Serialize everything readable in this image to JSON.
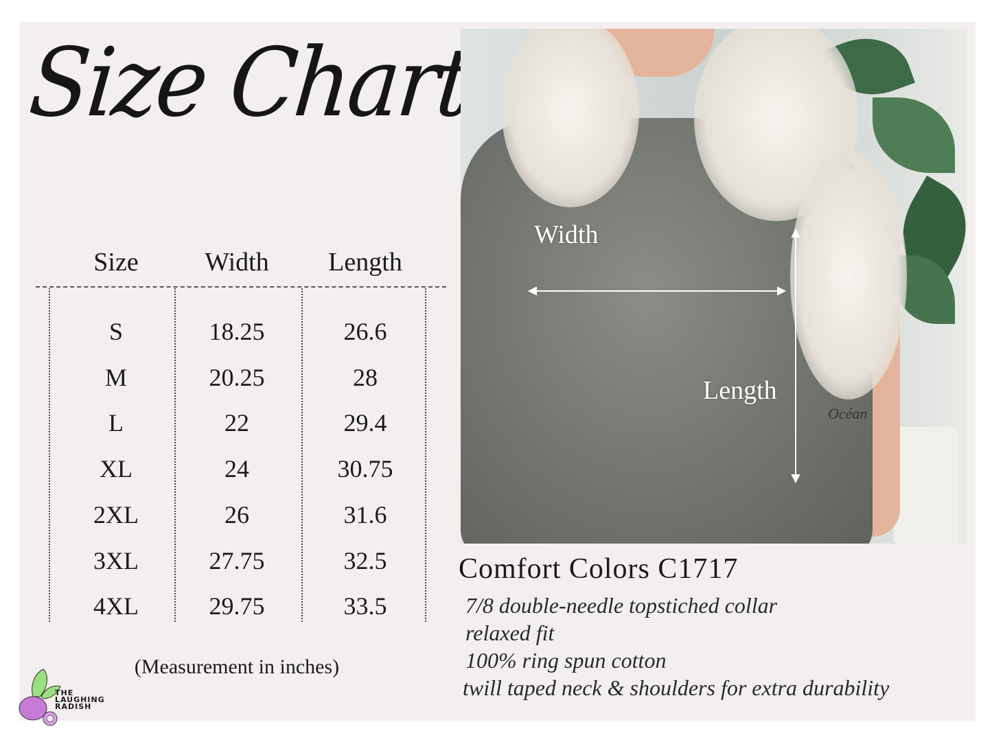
{
  "title": "Size Chart",
  "table": {
    "headers": [
      "Size",
      "Width",
      "Length"
    ],
    "rows": [
      [
        "S",
        "18.25",
        "26.6"
      ],
      [
        "M",
        "20.25",
        "28"
      ],
      [
        "L",
        "22",
        "29.4"
      ],
      [
        "XL",
        "24",
        "30.75"
      ],
      [
        "2XL",
        "26",
        "31.6"
      ],
      [
        "3XL",
        "27.75",
        "32.5"
      ],
      [
        "4XL",
        "29.75",
        "33.5"
      ]
    ],
    "note": "(Measurement in inches)"
  },
  "photo": {
    "width_label": "Width",
    "length_label": "Length",
    "tattoo_text": "Océan"
  },
  "product": {
    "name": "Comfort Colors C1717",
    "features": [
      "7/8 double-needle topstiched collar",
      "relaxed fit",
      "100% ring spun cotton",
      "twill taped neck & shoulders for extra durability"
    ]
  },
  "logo": {
    "lines": [
      "THE",
      "LAUGHING",
      "RADISH"
    ]
  },
  "colors": {
    "background": "#f3efee",
    "shirt": "#6f716c",
    "radish": "#c77ad6",
    "leaf": "#9be07f"
  }
}
